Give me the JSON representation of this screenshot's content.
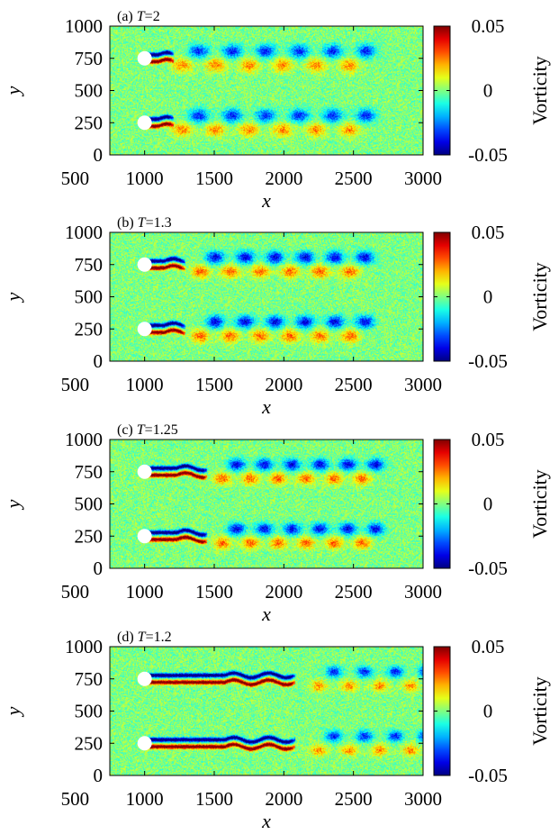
{
  "chart_data": [
    {
      "type": "heatmap",
      "panel_label": "(a) ",
      "T_symbol": "T",
      "T_value": "=2",
      "xlabel": "x",
      "ylabel": "y",
      "colorbar_label": "Vorticity",
      "xlim": [
        750,
        3000
      ],
      "ylim": [
        0,
        1000
      ],
      "x_ticks": [
        "500",
        "1000",
        "1500",
        "2000",
        "2500",
        "3000"
      ],
      "x_tick_values": [
        500,
        1000,
        1500,
        2000,
        2500,
        3000
      ],
      "y_ticks": [
        "0",
        "250",
        "500",
        "750",
        "1000"
      ],
      "y_tick_values": [
        0,
        250,
        500,
        750,
        1000
      ],
      "colorbar_ticks": [
        "0.05",
        "0",
        "-0.05"
      ],
      "colorbar_tick_values": [
        0.05,
        0,
        -0.05
      ],
      "vmin": -0.05,
      "vmax": 0.05,
      "obstacles": [
        {
          "x": 1000,
          "y": 750,
          "r": 30
        },
        {
          "x": 1000,
          "y": 250,
          "r": 30
        }
      ],
      "wake": {
        "type": "shedding",
        "length": 180,
        "start": 1270,
        "spacing": 240,
        "amplitude": 0.035,
        "spread": 85
      }
    },
    {
      "type": "heatmap",
      "panel_label": "(b) ",
      "T_symbol": "T",
      "T_value": "=1.3",
      "xlabel": "x",
      "ylabel": "y",
      "colorbar_label": "Vorticity",
      "xlim": [
        750,
        3000
      ],
      "ylim": [
        0,
        1000
      ],
      "x_ticks": [
        "500",
        "1000",
        "1500",
        "2000",
        "2500",
        "3000"
      ],
      "x_tick_values": [
        500,
        1000,
        1500,
        2000,
        2500,
        3000
      ],
      "y_ticks": [
        "0",
        "250",
        "500",
        "750",
        "1000"
      ],
      "y_tick_values": [
        0,
        250,
        500,
        750,
        1000
      ],
      "colorbar_ticks": [
        "0.05",
        "0",
        "-0.05"
      ],
      "colorbar_tick_values": [
        0.05,
        0,
        -0.05
      ],
      "vmin": -0.05,
      "vmax": 0.05,
      "obstacles": [
        {
          "x": 1000,
          "y": 750,
          "r": 30
        },
        {
          "x": 1000,
          "y": 250,
          "r": 30
        }
      ],
      "wake": {
        "type": "shedding",
        "length": 260,
        "start": 1400,
        "spacing": 215,
        "amplitude": 0.04,
        "spread": 80
      }
    },
    {
      "type": "heatmap",
      "panel_label": "(c) ",
      "T_symbol": "T",
      "T_value": "=1.25",
      "xlabel": "x",
      "ylabel": "y",
      "colorbar_label": "Vorticity",
      "xlim": [
        750,
        3000
      ],
      "ylim": [
        0,
        1000
      ],
      "x_ticks": [
        "500",
        "1000",
        "1500",
        "2000",
        "2500",
        "3000"
      ],
      "x_tick_values": [
        500,
        1000,
        1500,
        2000,
        2500,
        3000
      ],
      "y_ticks": [
        "0",
        "250",
        "500",
        "750",
        "1000"
      ],
      "y_tick_values": [
        0,
        250,
        500,
        750,
        1000
      ],
      "colorbar_ticks": [
        "0.05",
        "0",
        "-0.05"
      ],
      "colorbar_tick_values": [
        0.05,
        0,
        -0.05
      ],
      "vmin": -0.05,
      "vmax": 0.05,
      "obstacles": [
        {
          "x": 1000,
          "y": 750,
          "r": 30
        },
        {
          "x": 1000,
          "y": 250,
          "r": 30
        }
      ],
      "wake": {
        "type": "shedding",
        "length": 420,
        "start": 1560,
        "spacing": 200,
        "amplitude": 0.04,
        "spread": 75
      }
    },
    {
      "type": "heatmap",
      "panel_label": "(d) ",
      "T_symbol": "T",
      "T_value": "=1.2",
      "xlabel": "x",
      "ylabel": "y",
      "colorbar_label": "Vorticity",
      "xlim": [
        750,
        3000
      ],
      "ylim": [
        0,
        1000
      ],
      "x_ticks": [
        "500",
        "1000",
        "1500",
        "2000",
        "2500",
        "3000"
      ],
      "x_tick_values": [
        500,
        1000,
        1500,
        2000,
        2500,
        3000
      ],
      "y_ticks": [
        "0",
        "250",
        "500",
        "750",
        "1000"
      ],
      "y_tick_values": [
        0,
        250,
        500,
        750,
        1000
      ],
      "colorbar_ticks": [
        "0.05",
        "0",
        "-0.05"
      ],
      "colorbar_tick_values": [
        0.05,
        0,
        -0.05
      ],
      "vmin": -0.05,
      "vmax": 0.05,
      "obstacles": [
        {
          "x": 1000,
          "y": 750,
          "r": 30
        },
        {
          "x": 1000,
          "y": 250,
          "r": 30
        }
      ],
      "wake": {
        "type": "shedding",
        "length": 1050,
        "start": 2250,
        "spacing": 220,
        "amplitude": 0.035,
        "spread": 70
      }
    }
  ]
}
